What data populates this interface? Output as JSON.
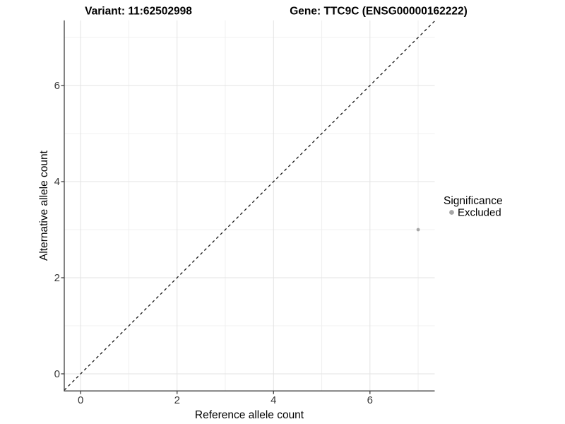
{
  "titles": {
    "variant": "Variant: 11:62502998",
    "gene": "Gene: TTC9C (ENSG00000162222)"
  },
  "chart_data": {
    "type": "scatter",
    "xlabel": "Reference allele count",
    "ylabel": "Alternative allele count",
    "x_ticks": [
      0,
      2,
      4,
      6
    ],
    "y_ticks": [
      0,
      2,
      4,
      6
    ],
    "x_minor_ticks": [
      1,
      3,
      5,
      7
    ],
    "y_minor_ticks": [
      1,
      3,
      5,
      7
    ],
    "x_tick_labels": [
      "0",
      "2",
      "4",
      "6"
    ],
    "y_tick_labels": [
      "0",
      "2",
      "4",
      "6"
    ],
    "xlim": [
      -0.34,
      7.34
    ],
    "ylim": [
      -0.36,
      7.35
    ],
    "grid": "major+minor",
    "points": [
      {
        "x": 7,
        "y": 3,
        "series": "Excluded"
      }
    ],
    "reference_line": {
      "type": "abline",
      "slope": 1,
      "intercept": 0,
      "style": "dashed"
    },
    "legend": {
      "title": "Significance",
      "position": "right",
      "entries": [
        {
          "label": "Excluded",
          "color": "#a6a6a6"
        }
      ]
    }
  },
  "colors": {
    "point": "#a6a6a6",
    "legend_dot": "#a6a6a6",
    "grid_major": "#e3e3e3",
    "grid_minor": "#f0f0f0",
    "axis_line": "#3f3f3f",
    "dashed_line": "#141414",
    "text": "#000000"
  }
}
